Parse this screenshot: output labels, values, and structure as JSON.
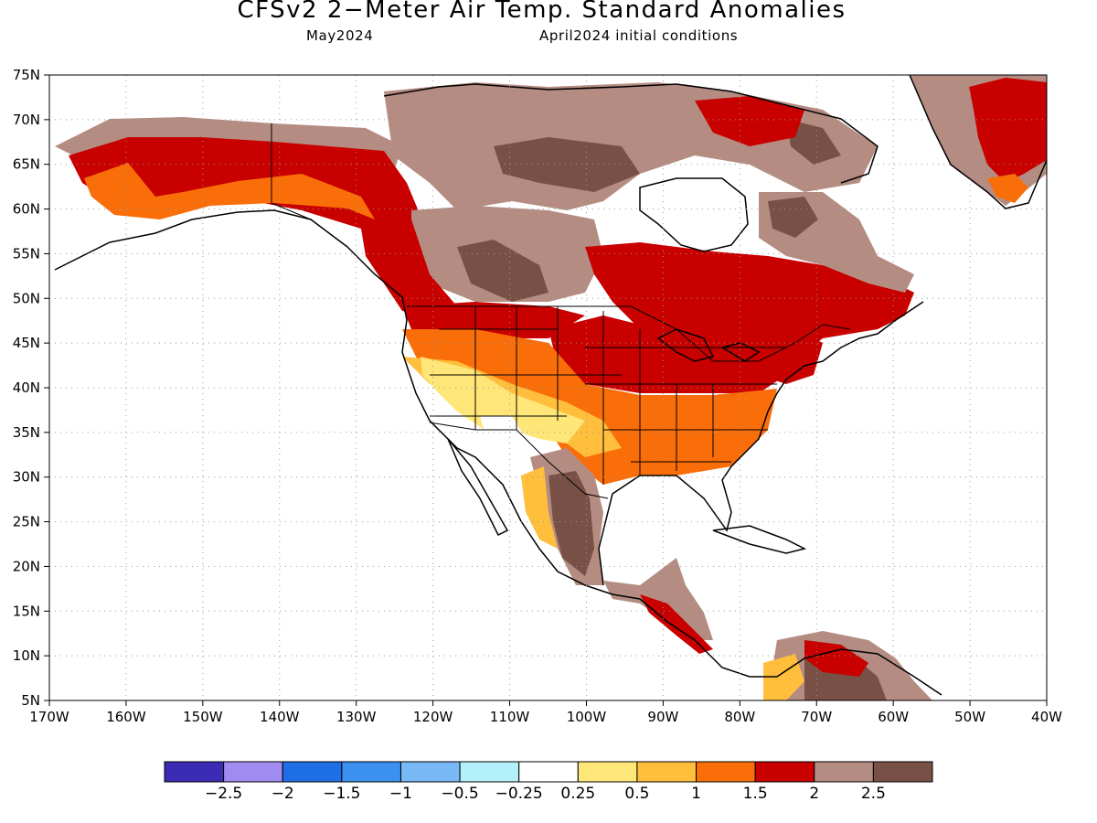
{
  "title": "CFSv2 2−Meter Air Temp. Standard Anomalies",
  "subtitle_left": "May2024",
  "subtitle_right": "April2024 initial conditions",
  "axes": {
    "lon_ticks": [
      "170W",
      "160W",
      "150W",
      "140W",
      "130W",
      "120W",
      "110W",
      "100W",
      "90W",
      "80W",
      "70W",
      "60W",
      "50W",
      "40W"
    ],
    "lat_ticks": [
      "75N",
      "70N",
      "65N",
      "60N",
      "55N",
      "50N",
      "45N",
      "40N",
      "35N",
      "30N",
      "25N",
      "20N",
      "15N",
      "10N",
      "5N"
    ],
    "lon_range": [
      -170,
      -40
    ],
    "lat_range": [
      5,
      75
    ],
    "grid": "dotted"
  },
  "colorbar": {
    "colors": [
      "#3c2bb4",
      "#a08cf0",
      "#1e6ee6",
      "#3c91f0",
      "#78b9f5",
      "#b4f0fa",
      "#ffffff",
      "#ffe678",
      "#ffbe3c",
      "#fa6e0a",
      "#c80000",
      "#b48c82",
      "#785046"
    ],
    "labels": [
      "−2.5",
      "−2",
      "−1.5",
      "−1",
      "−0.5",
      "−0.25",
      "0.25",
      "0.5",
      "1",
      "1.5",
      "2",
      "2.5"
    ]
  },
  "map_data": {
    "type": "heatmap",
    "variable": "2-meter air temperature standardized anomaly",
    "regions": [
      {
        "region": "Alaska interior",
        "category": 10
      },
      {
        "region": "Alaska north slope",
        "category": 11
      },
      {
        "region": "Yukon / NW Canada",
        "category": 10
      },
      {
        "region": "Northwest Territories / Nunavut",
        "category": 11
      },
      {
        "region": "Central Canadian Arctic",
        "category": 12
      },
      {
        "region": "Saskatchewan / Manitoba",
        "category": 12
      },
      {
        "region": "Ontario / Quebec",
        "category": 10
      },
      {
        "region": "Labrador",
        "category": 11
      },
      {
        "region": "Greenland",
        "category": 11
      },
      {
        "region": "Pacific Northwest",
        "category": 10
      },
      {
        "region": "Great Basin / Southwest",
        "category": 7
      },
      {
        "region": "Arizona / New Mexico",
        "category": 6
      },
      {
        "region": "Central Plains",
        "category": 9
      },
      {
        "region": "Upper Midwest",
        "category": 10
      },
      {
        "region": "Southeast US",
        "category": 9
      },
      {
        "region": "Northeast US",
        "category": 10
      },
      {
        "region": "Northern Mexico coast",
        "category": 8
      },
      {
        "region": "Central Mexico",
        "category": 12
      },
      {
        "region": "Central America",
        "category": 11
      },
      {
        "region": "Venezuela / Colombia",
        "category": 12
      }
    ]
  }
}
